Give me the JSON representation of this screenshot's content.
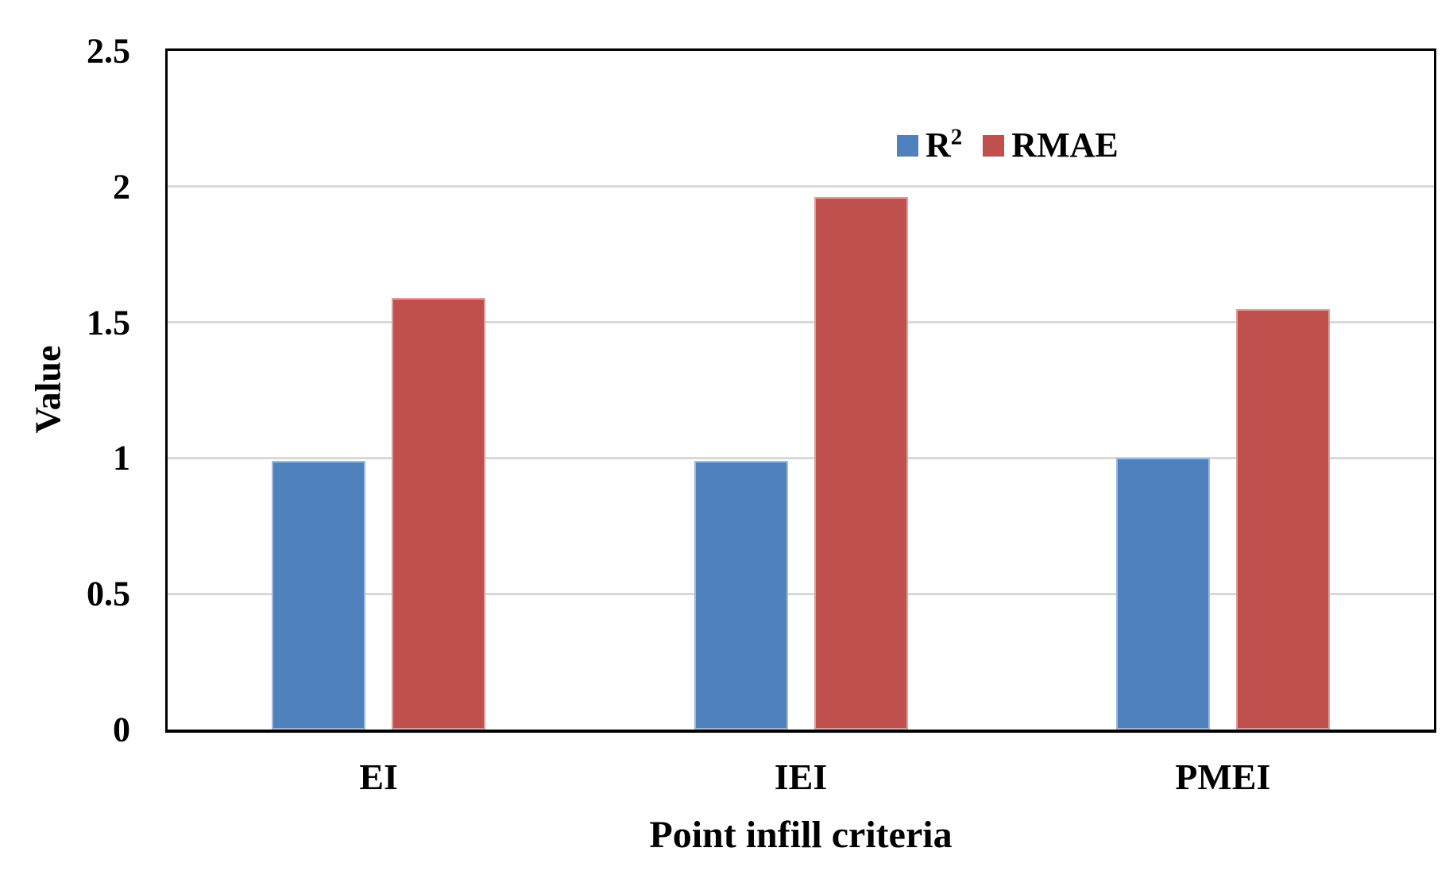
{
  "figure": {
    "background": "#FFFFFF",
    "text_color": "#000000",
    "axis_border_color": "#000000"
  },
  "chart_data": {
    "type": "bar",
    "categories": [
      "EI",
      "IEI",
      "PMEI"
    ],
    "series": [
      {
        "name": "R2",
        "legend_label": "R",
        "legend_label_superscript": "2",
        "color": "#4F81BD",
        "values": [
          0.99,
          0.99,
          1.0
        ]
      },
      {
        "name": "RMAE",
        "legend_label": "RMAE",
        "legend_label_superscript": "",
        "color": "#C0504D",
        "values": [
          1.59,
          1.96,
          1.55
        ]
      }
    ],
    "title": "",
    "xlabel": "Point infill criteria",
    "ylabel": "Value",
    "ylim": [
      0,
      2.5
    ],
    "yticks": [
      0,
      0.5,
      1,
      1.5,
      2,
      2.5
    ],
    "ytick_labels": [
      "0",
      "0.5",
      "1",
      "1.5",
      "2",
      "2.5"
    ],
    "grid": true,
    "gridline_color": "#D9D9D9",
    "legend_position": "top-right-inside"
  }
}
